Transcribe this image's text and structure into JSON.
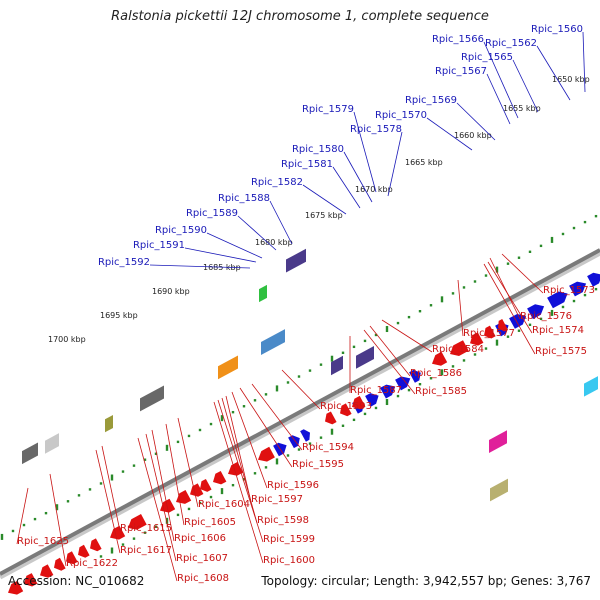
{
  "title": "Ralstonia pickettii 12J chromosome 1, complete sequence",
  "accession": "Accession: NC_010682",
  "summary": "Topology: circular; Length: 3,942,557 bp; Genes: 3,767",
  "colors": {
    "forward": "#1010d8",
    "reverse": "#e01010",
    "backbone": "#7a7a7a",
    "tick": "#2a8a2a"
  },
  "kbp_labels": [
    "1650 kbp",
    "1655 kbp",
    "1660 kbp",
    "1665 kbp",
    "1670 kbp",
    "1675 kbp",
    "1680 kbp",
    "1685 kbp",
    "1690 kbp",
    "1695 kbp",
    "1700 kbp"
  ],
  "forward_genes": [
    "Rpic_1560",
    "Rpic_1562",
    "Rpic_1565",
    "Rpic_1566",
    "Rpic_1567",
    "Rpic_1569",
    "Rpic_1570",
    "Rpic_1578",
    "Rpic_1579",
    "Rpic_1580",
    "Rpic_1581",
    "Rpic_1582",
    "Rpic_1588",
    "Rpic_1589",
    "Rpic_1590",
    "Rpic_1591",
    "Rpic_1592"
  ],
  "reverse_genes": [
    "Rpic_1573",
    "Rpic_1574",
    "Rpic_1575",
    "Rpic_1576",
    "Rpic_1577",
    "Rpic_1584",
    "Rpic_1585",
    "Rpic_1586",
    "Rpic_1587",
    "Rpic_1593",
    "Rpic_1594",
    "Rpic_1595",
    "Rpic_1596",
    "Rpic_1597",
    "Rpic_1598",
    "Rpic_1599",
    "Rpic_1600",
    "Rpic_1604",
    "Rpic_1605",
    "Rpic_1606",
    "Rpic_1607",
    "Rpic_1608",
    "Rpic_1615",
    "Rpic_1617",
    "Rpic_1622",
    "Rpic_1625"
  ]
}
